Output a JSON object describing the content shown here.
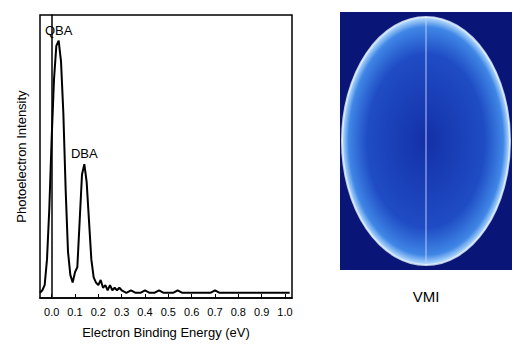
{
  "chart_data": {
    "type": "line",
    "x_label": "Electron Binding Energy (eV)",
    "y_label": "Photoelectron Intensity",
    "x": [
      -0.05,
      -0.04,
      -0.03,
      -0.02,
      -0.01,
      0.0,
      0.01,
      0.02,
      0.03,
      0.04,
      0.05,
      0.06,
      0.07,
      0.08,
      0.09,
      0.1,
      0.11,
      0.12,
      0.13,
      0.14,
      0.15,
      0.16,
      0.17,
      0.18,
      0.19,
      0.2,
      0.21,
      0.22,
      0.23,
      0.24,
      0.25,
      0.26,
      0.27,
      0.28,
      0.29,
      0.3,
      0.32,
      0.34,
      0.36,
      0.38,
      0.4,
      0.42,
      0.44,
      0.46,
      0.48,
      0.5,
      0.52,
      0.54,
      0.56,
      0.58,
      0.6,
      0.62,
      0.64,
      0.66,
      0.68,
      0.7,
      0.72,
      0.74,
      0.76,
      0.78,
      0.8,
      0.82,
      0.84,
      0.86,
      0.88,
      0.9,
      0.92,
      0.94,
      0.96,
      0.98,
      1.0,
      1.02
    ],
    "values": [
      0.02,
      0.03,
      0.05,
      0.15,
      0.35,
      0.62,
      0.85,
      0.98,
      1.0,
      0.92,
      0.72,
      0.42,
      0.18,
      0.09,
      0.06,
      0.1,
      0.12,
      0.3,
      0.48,
      0.52,
      0.45,
      0.3,
      0.15,
      0.08,
      0.06,
      0.05,
      0.07,
      0.04,
      0.05,
      0.03,
      0.05,
      0.03,
      0.04,
      0.03,
      0.04,
      0.03,
      0.02,
      0.03,
      0.02,
      0.02,
      0.03,
      0.02,
      0.02,
      0.03,
      0.02,
      0.02,
      0.02,
      0.03,
      0.02,
      0.02,
      0.02,
      0.02,
      0.02,
      0.02,
      0.02,
      0.03,
      0.02,
      0.02,
      0.02,
      0.02,
      0.02,
      0.02,
      0.02,
      0.02,
      0.02,
      0.02,
      0.02,
      0.02,
      0.02,
      0.02,
      0.02,
      0.02
    ],
    "color": "#000000",
    "xlim": [
      -0.05,
      1.03
    ],
    "xticks": [
      {
        "value": 0,
        "label": "0.0"
      },
      0.1,
      0.2,
      0.3,
      0.4,
      0.5,
      0.6,
      0.7,
      0.8,
      0.9,
      {
        "value": 1,
        "label": "1.0"
      }
    ],
    "ylim": [
      0,
      1.1
    ],
    "tick_labels": "x",
    "grid": false,
    "annotations": [
      {
        "text": "QBA",
        "x": 0.03,
        "y": 1.0
      },
      {
        "text": "DBA",
        "x": 0.14,
        "y": 0.52
      }
    ]
  },
  "image_panel": {
    "caption": "VMI"
  }
}
